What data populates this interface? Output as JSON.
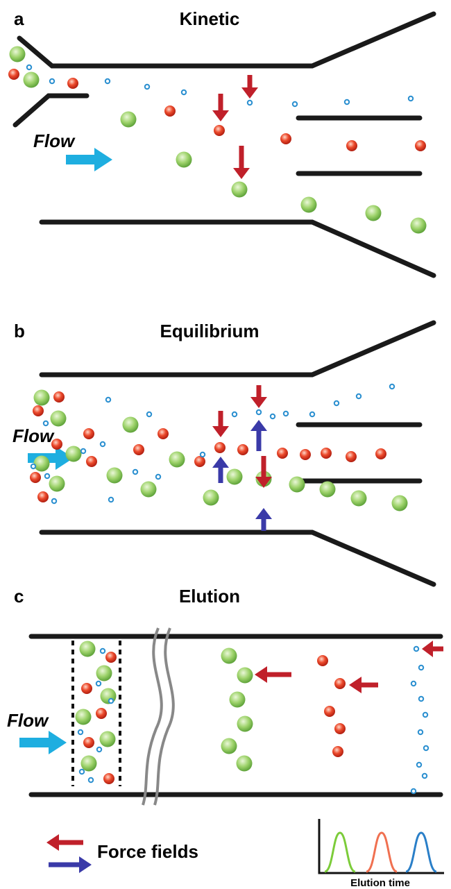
{
  "panels": [
    {
      "label": "a",
      "title": "Kinetic",
      "flow": "Flow"
    },
    {
      "label": "b",
      "title": "Equilibrium",
      "flow": "Flow"
    },
    {
      "label": "c",
      "title": "Elution",
      "flow": "Flow"
    }
  ],
  "legend": {
    "force": "Force fields",
    "axis": "Elution time"
  }
}
